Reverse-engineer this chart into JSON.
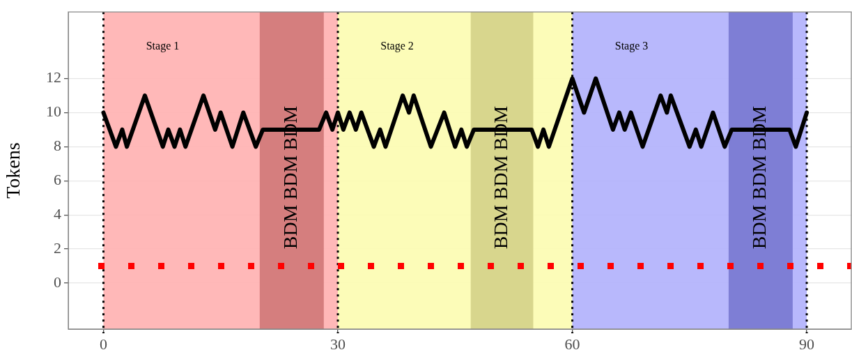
{
  "chart_data": {
    "type": "line",
    "ylabel": "Tokens",
    "xlim": [
      -4.5,
      95.7
    ],
    "xticks": [
      0,
      30,
      60,
      90
    ],
    "ylim": [
      -2.7,
      15.9
    ],
    "yticks": [
      0,
      2,
      4,
      6,
      8,
      10,
      12
    ],
    "grid": true,
    "legend": false,
    "marker": "none",
    "line_style": "solid",
    "series": [
      {
        "color": "#000000",
        "x": [
          0,
          1.6,
          2.4,
          3.0,
          5.3,
          7.6,
          8.3,
          9.1,
          9.8,
          10.5,
          12.8,
          14.3,
          15,
          16.5,
          17.9,
          19.5,
          20.4,
          27.6,
          28.5,
          29.3,
          30,
          30.7,
          31.5,
          32.3,
          33,
          34.6,
          35.4,
          36.1,
          38.3,
          39.1,
          39.7,
          41.9,
          43.6,
          45.0,
          45.8,
          46.5,
          47.4,
          54.8,
          55.6,
          56.3,
          57.0,
          60.0,
          61.5,
          63.0,
          65.2,
          66.0,
          66.7,
          67.5,
          69.0,
          71.3,
          72.1,
          72.6,
          75.0,
          75.8,
          76.5,
          78.0,
          79.5,
          80.4,
          87.8,
          88.6,
          90
        ],
        "values": [
          10,
          8,
          9,
          8,
          11,
          8,
          9,
          8,
          9,
          8,
          11,
          9,
          10,
          8,
          10,
          8,
          9,
          9,
          10,
          9,
          10,
          9,
          10,
          9,
          10,
          8,
          9,
          8,
          11,
          10,
          11,
          8,
          10,
          8,
          9,
          8,
          9,
          9,
          8,
          9,
          8,
          12,
          10,
          12,
          9,
          10,
          9,
          10,
          8,
          11,
          10,
          11,
          8,
          9,
          8,
          10,
          8,
          9,
          9,
          8,
          10
        ]
      }
    ],
    "bands": [
      {
        "axis": "x",
        "from": 0,
        "to": 30,
        "label": "Stage 1",
        "color": "#ffb0b0"
      },
      {
        "axis": "x",
        "from": 30,
        "to": 60,
        "label": "Stage 2",
        "color": "#fcfcb0"
      },
      {
        "axis": "x",
        "from": 60,
        "to": 90,
        "label": "Stage 3",
        "color": "#b0b0fc"
      },
      {
        "axis": "x",
        "from": 20,
        "to": 28.2,
        "label": "BDM BDM BDM",
        "color": "#d07878"
      },
      {
        "axis": "x",
        "from": 47,
        "to": 55,
        "label": "BDM BDM BDM",
        "color": "#d4d288"
      },
      {
        "axis": "x",
        "from": 80,
        "to": 88.2,
        "label": "BDM BDM BDM",
        "color": "#7878d0"
      }
    ],
    "ref_lines": [
      {
        "axis": "x",
        "value": 0,
        "color": "#000000",
        "line_style": "dotted"
      },
      {
        "axis": "x",
        "value": 30,
        "color": "#000000",
        "line_style": "dotted"
      },
      {
        "axis": "x",
        "value": 60,
        "color": "#000000",
        "line_style": "dotted"
      },
      {
        "axis": "x",
        "value": 90,
        "color": "#000000",
        "line_style": "dotted"
      },
      {
        "axis": "y",
        "value": 1,
        "color": "#ff0000",
        "line_style": "dotted"
      }
    ]
  }
}
